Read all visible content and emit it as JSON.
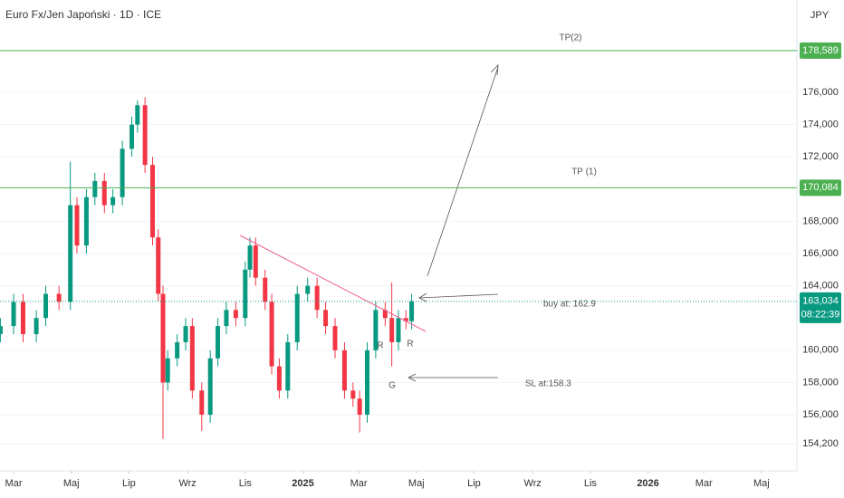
{
  "chart_data": {
    "type": "candlestick",
    "title": "Euro Fx/Jen Japoński · 1D · ICE",
    "currency": "JPY",
    "x": [
      -14,
      0,
      10,
      24,
      34,
      48,
      60,
      67,
      77,
      86,
      96,
      105,
      115,
      125,
      131,
      139,
      147,
      153,
      158,
      163,
      173,
      182,
      189,
      199,
      208,
      216,
      225,
      235,
      245,
      250,
      256,
      266,
      273,
      281,
      290,
      300,
      311,
      321,
      330,
      340,
      350,
      359,
      366,
      374,
      383,
      393,
      400,
      407,
      415,
      421
    ],
    "open": [
      161000,
      161500,
      163000,
      161000,
      162000,
      163500,
      163000,
      169000,
      166500,
      169500,
      170500,
      169000,
      169500,
      172500,
      174000,
      175200,
      171500,
      167000,
      163500,
      158000,
      159500,
      160500,
      161500,
      157500,
      156000,
      159500,
      161500,
      162500,
      162000,
      165000,
      166500,
      164500,
      163000,
      159000,
      157500,
      160500,
      163500,
      164000,
      162500,
      161500,
      160000,
      157500,
      157000,
      156000,
      160000,
      162500,
      162000,
      160500,
      162000,
      161800
    ],
    "high": [
      162000,
      163500,
      163500,
      162500,
      164000,
      164000,
      171700,
      169500,
      170000,
      171000,
      171000,
      170000,
      173000,
      174500,
      175500,
      175700,
      172000,
      167500,
      164000,
      160000,
      161000,
      162000,
      162000,
      158000,
      160000,
      162000,
      163000,
      163000,
      165500,
      167000,
      167000,
      165000,
      163500,
      159500,
      161000,
      164000,
      164500,
      164500,
      163000,
      162000,
      160500,
      158000,
      157500,
      160500,
      163000,
      163000,
      164200,
      162500,
      162500,
      163500
    ],
    "low": [
      160500,
      161000,
      160500,
      160500,
      161500,
      162500,
      162500,
      166000,
      166000,
      169000,
      168500,
      168500,
      169000,
      172000,
      173500,
      171000,
      166500,
      163000,
      154500,
      157500,
      159000,
      160000,
      157000,
      155000,
      155500,
      159000,
      161000,
      161500,
      161500,
      164500,
      164000,
      162500,
      158500,
      157000,
      157000,
      160000,
      163000,
      162000,
      161000,
      159500,
      157000,
      156500,
      154900,
      155500,
      159500,
      161500,
      159000,
      160000,
      161300,
      161300
    ],
    "close": [
      161500,
      163000,
      161000,
      162000,
      163500,
      163000,
      169000,
      166500,
      169500,
      170500,
      169000,
      169500,
      172500,
      174000,
      175200,
      171500,
      167000,
      163500,
      158000,
      159500,
      160500,
      161500,
      157500,
      156000,
      159500,
      161500,
      162500,
      162000,
      165000,
      166500,
      164500,
      163000,
      159000,
      157500,
      160500,
      163500,
      164000,
      162500,
      161500,
      160000,
      157500,
      157000,
      156000,
      160000,
      162500,
      162000,
      160500,
      162000,
      161800,
      163034
    ],
    "up_color": "#089981",
    "down_color": "#f23645",
    "xlim": [
      -14.4,
      828.5
    ],
    "xticks": [
      {
        "value": 0,
        "label": "Mar"
      },
      {
        "value": 61,
        "label": "Maj"
      },
      {
        "value": 122,
        "label": "Lip"
      },
      {
        "value": 184,
        "label": "Wrz"
      },
      {
        "value": 245,
        "label": "Lis"
      },
      {
        "value": 306,
        "label": "2025"
      },
      {
        "value": 365,
        "label": "Mar"
      },
      {
        "value": 426,
        "label": "Maj"
      },
      {
        "value": 487,
        "label": "Lip"
      },
      {
        "value": 549,
        "label": "Wrz"
      },
      {
        "value": 610,
        "label": "Lis"
      },
      {
        "value": 671,
        "label": "2026"
      },
      {
        "value": 730,
        "label": "Mar"
      },
      {
        "value": 791,
        "label": "Maj"
      }
    ],
    "ylim": [
      152520,
      181730
    ],
    "yticks": [
      {
        "value": 154200,
        "label": "154,200"
      },
      {
        "value": 156000,
        "label": "156,000"
      },
      {
        "value": 158000,
        "label": "158,000"
      },
      {
        "value": 160000,
        "label": "160,000"
      },
      {
        "value": 164000,
        "label": "164,000"
      },
      {
        "value": 166000,
        "label": "166,000"
      },
      {
        "value": 168000,
        "label": "168,000"
      },
      {
        "value": 172000,
        "label": "172,000"
      },
      {
        "value": 174000,
        "label": "174,000"
      },
      {
        "value": 176000,
        "label": "176,000"
      }
    ],
    "grid": true,
    "levels": {
      "names": [
        "TP(2)",
        "TP (1)"
      ],
      "values": [
        178589,
        170084
      ],
      "value_labels": [
        "178,589",
        "170,084"
      ],
      "color": "#4caf50"
    },
    "last_price": 163034,
    "last_price_label": "163,034",
    "countdown": "08:22:39",
    "annotations": [
      "buy at: 162.9",
      "SL at:158.3",
      "R",
      "R",
      "G"
    ]
  }
}
